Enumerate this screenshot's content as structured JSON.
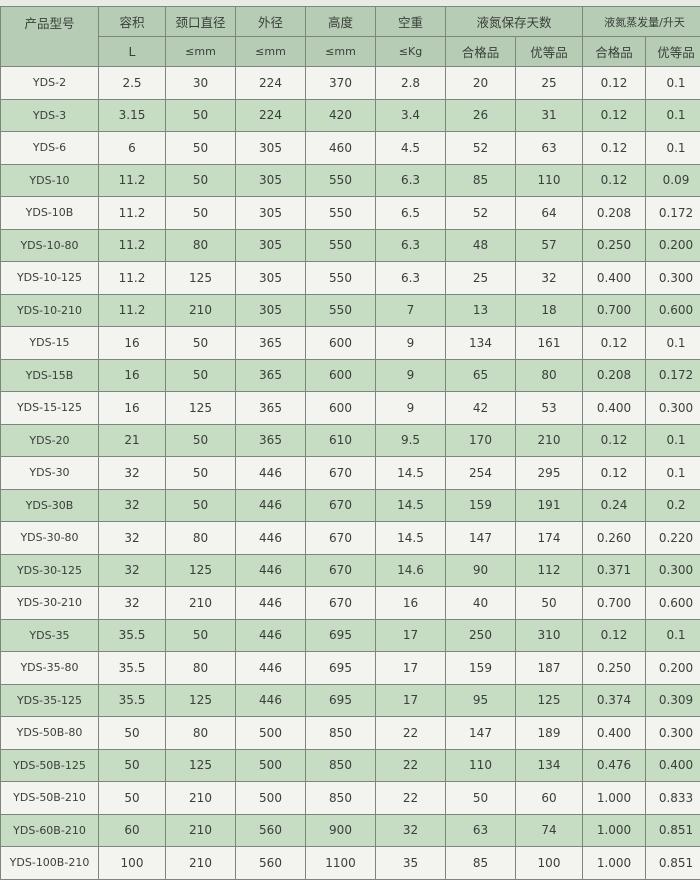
{
  "header": {
    "model": "产品型号",
    "volume": "容积",
    "neck": "颈口直径",
    "outer": "外径",
    "height": "高度",
    "weight": "空重",
    "storage": "液氮保存天数",
    "evap": "液氮蒸发量/升天",
    "volume_unit": "L",
    "neck_unit": "≤mm",
    "outer_unit": "≤mm",
    "height_unit": "≤mm",
    "weight_unit": "≤Kg",
    "storage_qualified": "合格品",
    "storage_premium": "优等品",
    "evap_qualified": "合格品",
    "evap_premium": "优等品"
  },
  "colors": {
    "header": "#b6ccb5",
    "row_green": "#c6dcc3",
    "row_white": "#f3f4f0"
  },
  "rows": [
    [
      "YDS-2",
      "2.5",
      "30",
      "224",
      "370",
      "2.8",
      "20",
      "25",
      "0.12",
      "0.1"
    ],
    [
      "YDS-3",
      "3.15",
      "50",
      "224",
      "420",
      "3.4",
      "26",
      "31",
      "0.12",
      "0.1"
    ],
    [
      "YDS-6",
      "6",
      "50",
      "305",
      "460",
      "4.5",
      "52",
      "63",
      "0.12",
      "0.1"
    ],
    [
      "YDS-10",
      "11.2",
      "50",
      "305",
      "550",
      "6.3",
      "85",
      "110",
      "0.12",
      "0.09"
    ],
    [
      "YDS-10B",
      "11.2",
      "50",
      "305",
      "550",
      "6.5",
      "52",
      "64",
      "0.208",
      "0.172"
    ],
    [
      "YDS-10-80",
      "11.2",
      "80",
      "305",
      "550",
      "6.3",
      "48",
      "57",
      "0.250",
      "0.200"
    ],
    [
      "YDS-10-125",
      "11.2",
      "125",
      "305",
      "550",
      "6.3",
      "25",
      "32",
      "0.400",
      "0.300"
    ],
    [
      "YDS-10-210",
      "11.2",
      "210",
      "305",
      "550",
      "7",
      "13",
      "18",
      "0.700",
      "0.600"
    ],
    [
      "YDS-15",
      "16",
      "50",
      "365",
      "600",
      "9",
      "134",
      "161",
      "0.12",
      "0.1"
    ],
    [
      "YDS-15B",
      "16",
      "50",
      "365",
      "600",
      "9",
      "65",
      "80",
      "0.208",
      "0.172"
    ],
    [
      "YDS-15-125",
      "16",
      "125",
      "365",
      "600",
      "9",
      "42",
      "53",
      "0.400",
      "0.300"
    ],
    [
      "YDS-20",
      "21",
      "50",
      "365",
      "610",
      "9.5",
      "170",
      "210",
      "0.12",
      "0.1"
    ],
    [
      "YDS-30",
      "32",
      "50",
      "446",
      "670",
      "14.5",
      "254",
      "295",
      "0.12",
      "0.1"
    ],
    [
      "YDS-30B",
      "32",
      "50",
      "446",
      "670",
      "14.5",
      "159",
      "191",
      "0.24",
      "0.2"
    ],
    [
      "YDS-30-80",
      "32",
      "80",
      "446",
      "670",
      "14.5",
      "147",
      "174",
      "0.260",
      "0.220"
    ],
    [
      "YDS-30-125",
      "32",
      "125",
      "446",
      "670",
      "14.6",
      "90",
      "112",
      "0.371",
      "0.300"
    ],
    [
      "YDS-30-210",
      "32",
      "210",
      "446",
      "670",
      "16",
      "40",
      "50",
      "0.700",
      "0.600"
    ],
    [
      "YDS-35",
      "35.5",
      "50",
      "446",
      "695",
      "17",
      "250",
      "310",
      "0.12",
      "0.1"
    ],
    [
      "YDS-35-80",
      "35.5",
      "80",
      "446",
      "695",
      "17",
      "159",
      "187",
      "0.250",
      "0.200"
    ],
    [
      "YDS-35-125",
      "35.5",
      "125",
      "446",
      "695",
      "17",
      "95",
      "125",
      "0.374",
      "0.309"
    ],
    [
      "YDS-50B-80",
      "50",
      "80",
      "500",
      "850",
      "22",
      "147",
      "189",
      "0.400",
      "0.300"
    ],
    [
      "YDS-50B-125",
      "50",
      "125",
      "500",
      "850",
      "22",
      "110",
      "134",
      "0.476",
      "0.400"
    ],
    [
      "YDS-50B-210",
      "50",
      "210",
      "500",
      "850",
      "22",
      "50",
      "60",
      "1.000",
      "0.833"
    ],
    [
      "YDS-60B-210",
      "60",
      "210",
      "560",
      "900",
      "32",
      "63",
      "74",
      "1.000",
      "0.851"
    ],
    [
      "YDS-100B-210",
      "100",
      "210",
      "560",
      "1100",
      "35",
      "85",
      "100",
      "1.000",
      "0.851"
    ]
  ]
}
